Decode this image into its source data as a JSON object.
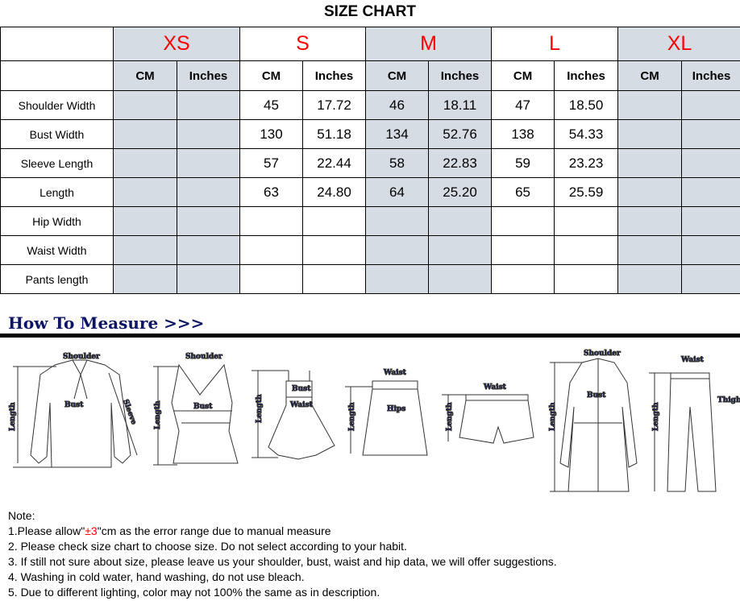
{
  "title": "SIZE CHART",
  "sizes": [
    "XS",
    "S",
    "M",
    "L",
    "XL"
  ],
  "units": {
    "cm": "CM",
    "inches": "Inches"
  },
  "rows": [
    {
      "label": "Shoulder Width",
      "values": [
        "",
        "",
        "45",
        "17.72",
        "46",
        "18.11",
        "47",
        "18.50",
        "",
        ""
      ]
    },
    {
      "label": "Bust Width",
      "values": [
        "",
        "",
        "130",
        "51.18",
        "134",
        "52.76",
        "138",
        "54.33",
        "",
        ""
      ]
    },
    {
      "label": "Sleeve Length",
      "values": [
        "",
        "",
        "57",
        "22.44",
        "58",
        "22.83",
        "59",
        "23.23",
        "",
        ""
      ]
    },
    {
      "label": "Length",
      "values": [
        "",
        "",
        "63",
        "24.80",
        "64",
        "25.20",
        "65",
        "25.59",
        "",
        ""
      ]
    },
    {
      "label": "Hip Width",
      "values": [
        "",
        "",
        "",
        "",
        "",
        "",
        "",
        "",
        "",
        ""
      ]
    },
    {
      "label": "Waist Width",
      "values": [
        "",
        "",
        "",
        "",
        "",
        "",
        "",
        "",
        "",
        ""
      ]
    },
    {
      "label": "Pants length",
      "values": [
        "",
        "",
        "",
        "",
        "",
        "",
        "",
        "",
        "",
        ""
      ]
    }
  ],
  "measure": {
    "title": "How To Measure >>>",
    "labels": {
      "shoulder": "Shoulder",
      "length": "Length",
      "bust": "Bust",
      "sleeve": "Sleeve",
      "waist": "Waist",
      "hips": "Hips",
      "thigh": "Thigh"
    }
  },
  "notes": {
    "heading": "Note:",
    "n1_pre": "1.Please allow\"",
    "n1_red": "±3",
    "n1_post": "\"cm as the error range due to manual measure",
    "n2": "2. Please check size chart to choose size. Do not select according to your habit.",
    "n3": "3. If still not sure about size, please leave us your shoulder, bust, waist and hip data, we will offer suggestions.",
    "n4": "4. Washing in cold water, hand washing, do not use bleach.",
    "n5": "5. Due to different lighting, color may not 100% the same as in description."
  },
  "colors": {
    "header_gray": "#d6dce4",
    "size_red": "#ff0000",
    "measure_navy": "#0d1464"
  }
}
